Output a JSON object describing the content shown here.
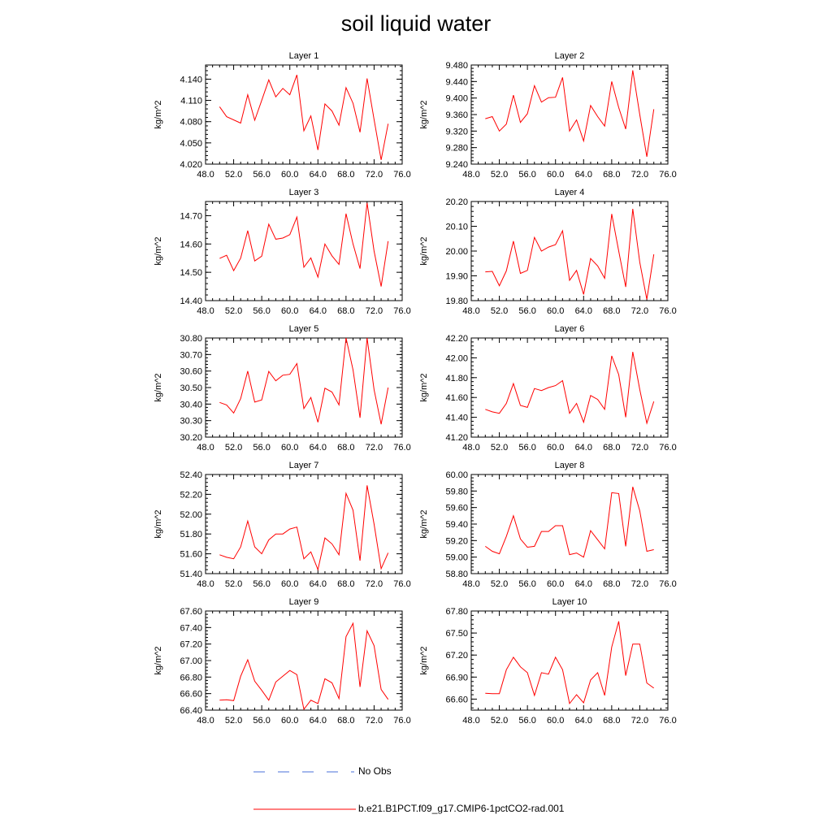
{
  "title": "soil liquid water",
  "legend": {
    "obs_label": "No Obs",
    "model_label": "b.e21.B1PCT.f09_g17.CMIP6-1pctCO2-rad.001",
    "obs_color": "#4a6fd8",
    "model_color": "#ff0000"
  },
  "chart_data": [
    {
      "type": "line",
      "title": "Layer 1",
      "ylabel": "kg/m^2",
      "xlim": [
        48,
        76
      ],
      "ylim": [
        4.02,
        4.16
      ],
      "xticks": [
        "48.0",
        "52.0",
        "56.0",
        "60.0",
        "64.0",
        "68.0",
        "72.0",
        "76.0"
      ],
      "yticks": [
        "4.020",
        "4.050",
        "4.080",
        "4.110",
        "4.140"
      ],
      "x": [
        50,
        51,
        53,
        54,
        55,
        56,
        57,
        58,
        59,
        60,
        61,
        62,
        63,
        64,
        65,
        66,
        67,
        68,
        69,
        70,
        71,
        72,
        73,
        74
      ],
      "series": [
        {
          "values": [
            4.101,
            4.087,
            4.078,
            4.118,
            4.082,
            4.11,
            4.139,
            4.115,
            4.127,
            4.118,
            4.146,
            4.067,
            4.088,
            4.04,
            4.105,
            4.095,
            4.075,
            4.128,
            4.106,
            4.065,
            4.141,
            4.083,
            4.026,
            4.077
          ]
        }
      ]
    },
    {
      "type": "line",
      "title": "Layer 2",
      "ylabel": "kg/m^2",
      "xlim": [
        48,
        76
      ],
      "ylim": [
        9.24,
        9.48
      ],
      "xticks": [
        "48.0",
        "52.0",
        "56.0",
        "60.0",
        "64.0",
        "68.0",
        "72.0",
        "76.0"
      ],
      "yticks": [
        "9.240",
        "9.280",
        "9.320",
        "9.360",
        "9.400",
        "9.440",
        "9.480"
      ],
      "x": [
        50,
        51,
        52,
        53,
        54,
        55,
        56,
        57,
        58,
        59,
        60,
        61,
        62,
        63,
        64,
        65,
        66,
        67,
        68,
        69,
        70,
        71,
        72,
        73,
        74
      ],
      "series": [
        {
          "values": [
            9.35,
            9.355,
            9.32,
            9.337,
            9.407,
            9.341,
            9.362,
            9.43,
            9.39,
            9.401,
            9.402,
            9.45,
            9.32,
            9.347,
            9.296,
            9.382,
            9.355,
            9.332,
            9.44,
            9.377,
            9.325,
            9.467,
            9.36,
            9.258,
            9.373
          ]
        }
      ]
    },
    {
      "type": "line",
      "title": "Layer 3",
      "ylabel": "kg/m^2",
      "xlim": [
        48,
        76
      ],
      "ylim": [
        14.4,
        14.75
      ],
      "xticks": [
        "48.0",
        "52.0",
        "56.0",
        "60.0",
        "64.0",
        "68.0",
        "72.0",
        "76.0"
      ],
      "yticks": [
        "14.40",
        "14.50",
        "14.60",
        "14.70"
      ],
      "x": [
        50,
        51,
        52,
        53,
        54,
        55,
        56,
        57,
        58,
        59,
        60,
        61,
        62,
        63,
        64,
        65,
        66,
        67,
        68,
        69,
        70,
        71,
        72,
        73,
        74
      ],
      "series": [
        {
          "values": [
            14.549,
            14.56,
            14.506,
            14.55,
            14.647,
            14.54,
            14.557,
            14.67,
            14.617,
            14.621,
            14.633,
            14.695,
            14.518,
            14.551,
            14.483,
            14.6,
            14.558,
            14.528,
            14.707,
            14.6,
            14.513,
            14.745,
            14.575,
            14.45,
            14.61
          ]
        }
      ]
    },
    {
      "type": "line",
      "title": "Layer 4",
      "ylabel": "kg/m^2",
      "xlim": [
        48,
        76
      ],
      "ylim": [
        19.8,
        20.2
      ],
      "xticks": [
        "48.0",
        "52.0",
        "56.0",
        "60.0",
        "64.0",
        "68.0",
        "72.0",
        "76.0"
      ],
      "yticks": [
        "19.80",
        "19.90",
        "20.00",
        "20.10",
        "20.20"
      ],
      "x": [
        50,
        51,
        52,
        53,
        54,
        55,
        56,
        57,
        58,
        59,
        60,
        61,
        62,
        63,
        64,
        65,
        66,
        67,
        68,
        69,
        70,
        71,
        72,
        73,
        74
      ],
      "series": [
        {
          "values": [
            19.916,
            19.918,
            19.86,
            19.92,
            20.04,
            19.91,
            19.922,
            20.055,
            20.0,
            20.016,
            20.026,
            20.082,
            19.882,
            19.922,
            19.825,
            19.97,
            19.94,
            19.89,
            20.15,
            20.0,
            19.855,
            20.17,
            19.955,
            19.805,
            19.987
          ]
        }
      ]
    },
    {
      "type": "line",
      "title": "Layer 5",
      "ylabel": "kg/m^2",
      "xlim": [
        48,
        76
      ],
      "ylim": [
        30.2,
        30.8
      ],
      "xticks": [
        "48.0",
        "52.0",
        "56.0",
        "60.0",
        "64.0",
        "68.0",
        "72.0",
        "76.0"
      ],
      "yticks": [
        "30.20",
        "30.30",
        "30.40",
        "30.50",
        "30.60",
        "30.70",
        "30.80"
      ],
      "x": [
        50,
        51,
        52,
        53,
        54,
        55,
        56,
        57,
        58,
        59,
        60,
        61,
        62,
        63,
        64,
        65,
        66,
        67,
        68,
        69,
        70,
        71,
        72,
        73,
        74
      ],
      "series": [
        {
          "values": [
            30.41,
            30.395,
            30.346,
            30.433,
            30.6,
            30.412,
            30.425,
            30.598,
            30.541,
            30.575,
            30.58,
            30.645,
            30.373,
            30.44,
            30.29,
            30.496,
            30.473,
            30.395,
            30.8,
            30.607,
            30.317,
            30.8,
            30.487,
            30.278,
            30.5
          ]
        }
      ]
    },
    {
      "type": "line",
      "title": "Layer 6",
      "ylabel": "kg/m^2",
      "xlim": [
        48,
        76
      ],
      "ylim": [
        41.2,
        42.2
      ],
      "xticks": [
        "48.0",
        "52.0",
        "56.0",
        "60.0",
        "64.0",
        "68.0",
        "72.0",
        "76.0"
      ],
      "yticks": [
        "41.20",
        "41.40",
        "41.60",
        "41.80",
        "42.00",
        "42.20"
      ],
      "x": [
        50,
        51,
        52,
        53,
        54,
        55,
        56,
        57,
        58,
        59,
        60,
        61,
        62,
        63,
        64,
        65,
        66,
        67,
        68,
        69,
        70,
        71,
        72,
        73,
        74
      ],
      "series": [
        {
          "values": [
            41.48,
            41.455,
            41.44,
            41.54,
            41.74,
            41.52,
            41.5,
            41.69,
            41.67,
            41.7,
            41.72,
            41.77,
            41.44,
            41.54,
            41.35,
            41.62,
            41.58,
            41.48,
            42.02,
            41.83,
            41.4,
            42.06,
            41.68,
            41.34,
            41.56
          ]
        }
      ]
    },
    {
      "type": "line",
      "title": "Layer 7",
      "ylabel": "kg/m^2",
      "xlim": [
        48,
        76
      ],
      "ylim": [
        51.4,
        52.4
      ],
      "xticks": [
        "48.0",
        "52.0",
        "56.0",
        "60.0",
        "64.0",
        "68.0",
        "72.0",
        "76.0"
      ],
      "yticks": [
        "51.40",
        "51.60",
        "51.80",
        "52.00",
        "52.20",
        "52.40"
      ],
      "x": [
        50,
        51,
        52,
        53,
        54,
        55,
        56,
        57,
        58,
        59,
        60,
        61,
        62,
        63,
        64,
        65,
        66,
        67,
        68,
        69,
        70,
        71,
        72,
        73,
        74
      ],
      "series": [
        {
          "values": [
            51.59,
            51.565,
            51.55,
            51.67,
            51.93,
            51.67,
            51.6,
            51.74,
            51.8,
            51.8,
            51.85,
            51.87,
            51.55,
            51.62,
            51.44,
            51.76,
            51.7,
            51.59,
            52.21,
            52.04,
            51.53,
            52.29,
            51.9,
            51.45,
            51.61
          ]
        }
      ]
    },
    {
      "type": "line",
      "title": "Layer 8",
      "ylabel": "kg/m^2",
      "xlim": [
        48,
        76
      ],
      "ylim": [
        58.8,
        60.0
      ],
      "xticks": [
        "48.0",
        "52.0",
        "56.0",
        "60.0",
        "64.0",
        "68.0",
        "72.0",
        "76.0"
      ],
      "yticks": [
        "58.80",
        "59.00",
        "59.20",
        "59.40",
        "59.60",
        "59.80",
        "60.00"
      ],
      "x": [
        50,
        51,
        52,
        53,
        54,
        55,
        56,
        57,
        58,
        59,
        60,
        61,
        62,
        63,
        64,
        65,
        66,
        67,
        68,
        69,
        70,
        71,
        72,
        73,
        74
      ],
      "series": [
        {
          "values": [
            59.13,
            59.07,
            59.04,
            59.25,
            59.5,
            59.22,
            59.12,
            59.13,
            59.31,
            59.31,
            59.38,
            59.38,
            59.03,
            59.05,
            59.0,
            59.32,
            59.21,
            59.1,
            59.78,
            59.77,
            59.13,
            59.85,
            59.56,
            59.07,
            59.09
          ]
        }
      ]
    },
    {
      "type": "line",
      "title": "Layer 9",
      "ylabel": "kg/m^2",
      "xlim": [
        48,
        76
      ],
      "ylim": [
        66.4,
        67.6
      ],
      "xticks": [
        "48.0",
        "52.0",
        "56.0",
        "60.0",
        "64.0",
        "68.0",
        "72.0",
        "76.0"
      ],
      "yticks": [
        "66.40",
        "66.60",
        "66.80",
        "67.00",
        "67.20",
        "67.40",
        "67.60"
      ],
      "x": [
        50,
        51,
        52,
        53,
        54,
        55,
        56,
        57,
        58,
        59,
        60,
        61,
        62,
        63,
        64,
        65,
        66,
        67,
        68,
        69,
        70,
        71,
        72,
        73,
        74
      ],
      "series": [
        {
          "values": [
            66.52,
            66.525,
            66.515,
            66.81,
            67.01,
            66.75,
            66.64,
            66.52,
            66.74,
            66.81,
            66.88,
            66.83,
            66.41,
            66.52,
            66.48,
            66.78,
            66.73,
            66.54,
            67.29,
            67.45,
            66.68,
            67.36,
            67.18,
            66.65,
            66.53
          ]
        }
      ]
    },
    {
      "type": "line",
      "title": "Layer 10",
      "ylabel": "kg/m^2",
      "xlim": [
        48,
        76
      ],
      "ylim": [
        66.45,
        67.8
      ],
      "xticks": [
        "48.0",
        "52.0",
        "56.0",
        "60.0",
        "64.0",
        "68.0",
        "72.0",
        "76.0"
      ],
      "yticks": [
        "66.60",
        "66.90",
        "67.20",
        "67.50",
        "67.80"
      ],
      "x": [
        50,
        51,
        52,
        53,
        54,
        55,
        56,
        57,
        58,
        59,
        60,
        61,
        62,
        63,
        64,
        65,
        66,
        67,
        68,
        69,
        70,
        71,
        72,
        73,
        74
      ],
      "series": [
        {
          "values": [
            66.68,
            66.675,
            66.675,
            67.0,
            67.17,
            67.04,
            66.96,
            66.65,
            66.96,
            66.94,
            67.17,
            67.0,
            66.54,
            66.66,
            66.55,
            66.86,
            66.96,
            66.65,
            67.31,
            67.66,
            66.92,
            67.35,
            67.35,
            66.82,
            66.75
          ]
        }
      ]
    }
  ]
}
